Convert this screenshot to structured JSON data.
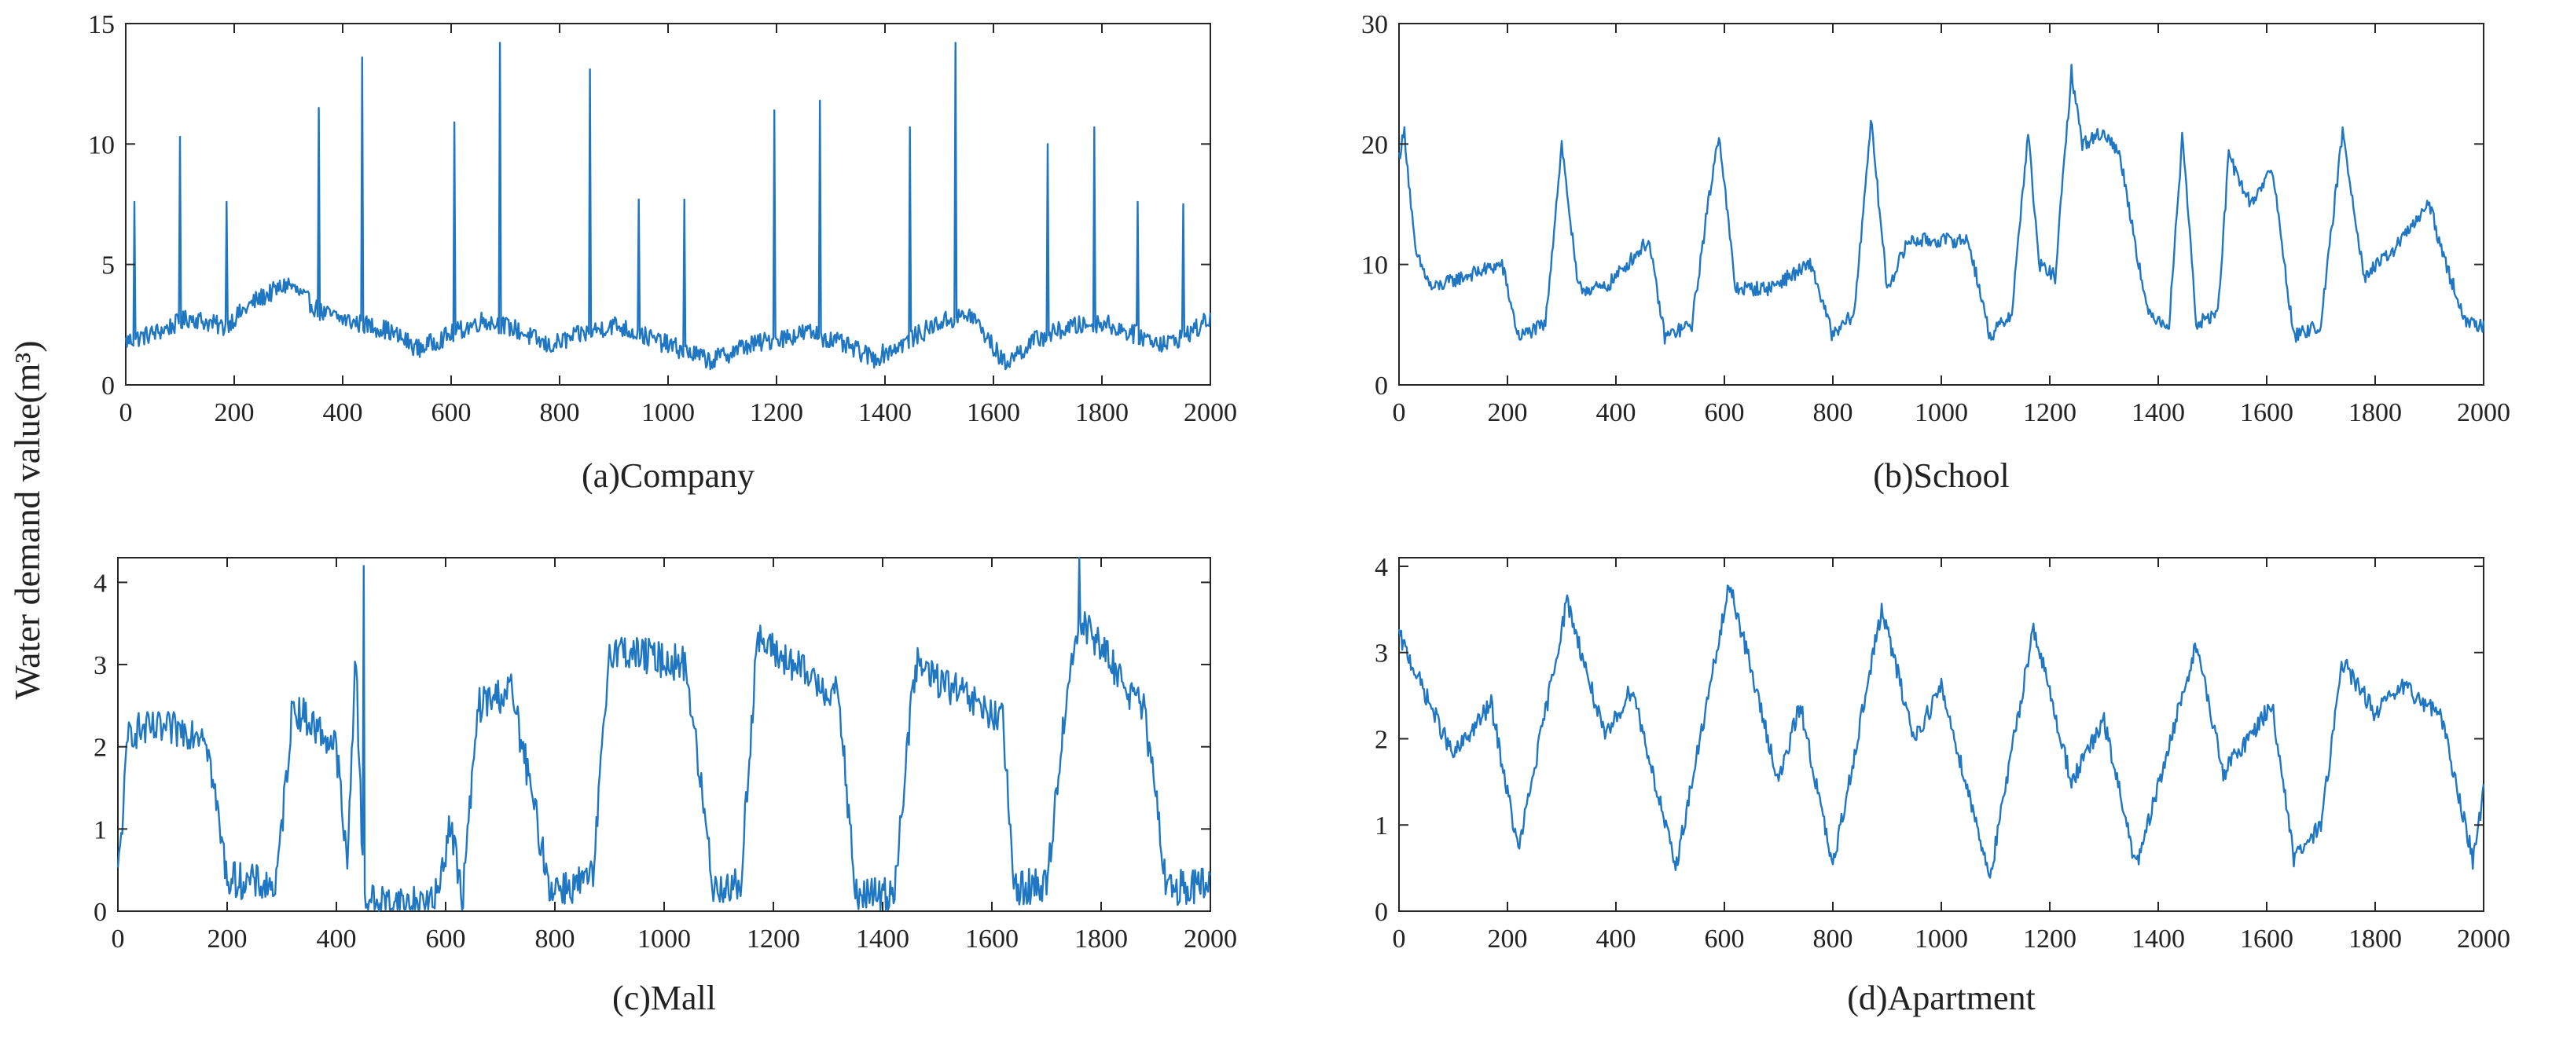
{
  "figure": {
    "shared_ylabel": "Water demand value(m³)"
  },
  "chart_data": [
    {
      "type": "line",
      "caption": "(a)Company",
      "xlim": [
        0,
        2000
      ],
      "ylim": [
        0,
        15
      ],
      "xticks": [
        0,
        200,
        400,
        600,
        800,
        1000,
        1200,
        1400,
        1600,
        1800,
        2000
      ],
      "yticks": [
        0,
        5,
        10,
        15
      ],
      "grid": false,
      "color": "#1f77c4",
      "x": [
        0,
        60,
        120,
        180,
        240,
        300,
        360,
        420,
        480,
        540,
        600,
        660,
        720,
        780,
        840,
        900,
        960,
        1020,
        1080,
        1140,
        1200,
        1260,
        1320,
        1380,
        1440,
        1500,
        1560,
        1620,
        1680,
        1740,
        1800,
        1860,
        1920,
        1980,
        2000
      ],
      "y": [
        1.8,
        2.2,
        2.8,
        2.4,
        3.5,
        4.2,
        3.0,
        2.6,
        2.3,
        1.5,
        2.1,
        2.7,
        2.3,
        1.6,
        2.1,
        2.5,
        2.0,
        1.5,
        1.0,
        1.6,
        1.9,
        2.2,
        1.7,
        1.1,
        1.8,
        2.6,
        2.9,
        0.9,
        1.9,
        2.4,
        2.6,
        2.1,
        1.7,
        2.4,
        2.8
      ],
      "spikes": [
        {
          "x": 15,
          "y": 7.6
        },
        {
          "x": 100,
          "y": 10.3
        },
        {
          "x": 185,
          "y": 7.6
        },
        {
          "x": 355,
          "y": 11.5
        },
        {
          "x": 435,
          "y": 13.6
        },
        {
          "x": 605,
          "y": 10.9
        },
        {
          "x": 690,
          "y": 14.2
        },
        {
          "x": 855,
          "y": 13.1
        },
        {
          "x": 945,
          "y": 7.7
        },
        {
          "x": 1030,
          "y": 7.7
        },
        {
          "x": 1195,
          "y": 11.4
        },
        {
          "x": 1280,
          "y": 11.8
        },
        {
          "x": 1445,
          "y": 10.7
        },
        {
          "x": 1530,
          "y": 14.2
        },
        {
          "x": 1700,
          "y": 10.0
        },
        {
          "x": 1785,
          "y": 10.7
        },
        {
          "x": 1865,
          "y": 7.6
        },
        {
          "x": 1950,
          "y": 7.5
        }
      ],
      "noise": 0.8
    },
    {
      "type": "line",
      "caption": "(b)School",
      "xlim": [
        0,
        2000
      ],
      "ylim": [
        0,
        30
      ],
      "xticks": [
        0,
        200,
        400,
        600,
        800,
        1000,
        1200,
        1400,
        1600,
        1800,
        2000
      ],
      "yticks": [
        0,
        10,
        20,
        30
      ],
      "grid": false,
      "color": "#1f77c4",
      "x": [
        0,
        10,
        30,
        60,
        120,
        190,
        220,
        270,
        300,
        330,
        380,
        460,
        490,
        540,
        570,
        590,
        620,
        680,
        760,
        800,
        840,
        870,
        900,
        940,
        1050,
        1090,
        1130,
        1160,
        1180,
        1210,
        1240,
        1260,
        1300,
        1330,
        1380,
        1420,
        1445,
        1470,
        1510,
        1530,
        1570,
        1610,
        1650,
        1700,
        1740,
        1780,
        1830,
        1900,
        1930,
        1970,
        2000
      ],
      "y": [
        19,
        21,
        11,
        8,
        9,
        10,
        4,
        5,
        20,
        8,
        8,
        12,
        4,
        5,
        15,
        21,
        8,
        8,
        10,
        4,
        6,
        22,
        8,
        12,
        12,
        4,
        6,
        21,
        10,
        9,
        26,
        20,
        21,
        19,
        6,
        5,
        21,
        5,
        6,
        19,
        15,
        18,
        4,
        5,
        21,
        9,
        11,
        15,
        10,
        5,
        5
      ],
      "spikes": [],
      "noise": 1.2
    },
    {
      "type": "line",
      "caption": "(c)Mall",
      "xlim": [
        0,
        2000
      ],
      "ylim": [
        0,
        4.3
      ],
      "xticks": [
        0,
        200,
        400,
        600,
        800,
        1000,
        1200,
        1400,
        1600,
        1800,
        2000
      ],
      "yticks": [
        0,
        1,
        2,
        3,
        4
      ],
      "grid": false,
      "color": "#1f77c4",
      "x": [
        0,
        20,
        160,
        200,
        290,
        320,
        400,
        420,
        435,
        450,
        470,
        580,
        610,
        630,
        660,
        720,
        790,
        830,
        870,
        900,
        1040,
        1090,
        1140,
        1170,
        1320,
        1350,
        1420,
        1460,
        1620,
        1640,
        1700,
        1740,
        1760,
        1880,
        1920,
        2000
      ],
      "y": [
        0.4,
        2.2,
        2.2,
        0.4,
        0.3,
        2.5,
        2.0,
        0.5,
        3.2,
        0.2,
        0.1,
        0.1,
        1.1,
        0.1,
        2.5,
        2.7,
        0.3,
        0.3,
        0.4,
        3.2,
        3.0,
        0.3,
        0.3,
        3.3,
        2.6,
        0.2,
        0.2,
        3.0,
        2.3,
        0.3,
        0.3,
        2.8,
        3.6,
        2.4,
        0.3,
        0.3
      ],
      "spikes": [
        {
          "x": 450,
          "y": 4.2
        },
        {
          "x": 1760,
          "y": 4.3
        }
      ],
      "noise": 0.45
    },
    {
      "type": "line",
      "caption": "(d)Apartment",
      "xlim": [
        0,
        2000
      ],
      "ylim": [
        0,
        4.1
      ],
      "xticks": [
        0,
        200,
        400,
        600,
        800,
        1000,
        1200,
        1400,
        1600,
        1800,
        2000
      ],
      "yticks": [
        0,
        1,
        2,
        3,
        4
      ],
      "grid": false,
      "color": "#1f77c4",
      "x": [
        0,
        100,
        170,
        220,
        310,
        380,
        430,
        510,
        610,
        700,
        740,
        800,
        890,
        950,
        1000,
        1090,
        1170,
        1240,
        1300,
        1360,
        1470,
        1520,
        1610,
        1650,
        1700,
        1740,
        1800,
        1850,
        1920,
        1980,
        2000
      ],
      "y": [
        3.2,
        1.8,
        2.4,
        0.7,
        3.6,
        2.0,
        2.6,
        0.5,
        3.8,
        1.5,
        2.4,
        0.5,
        3.5,
        2.0,
        2.6,
        0.4,
        3.3,
        1.5,
        2.2,
        0.5,
        3.1,
        1.6,
        2.4,
        0.6,
        1.0,
        2.9,
        2.3,
        2.6,
        2.3,
        0.6,
        1.4
      ],
      "spikes": [],
      "noise": 0.22
    }
  ]
}
